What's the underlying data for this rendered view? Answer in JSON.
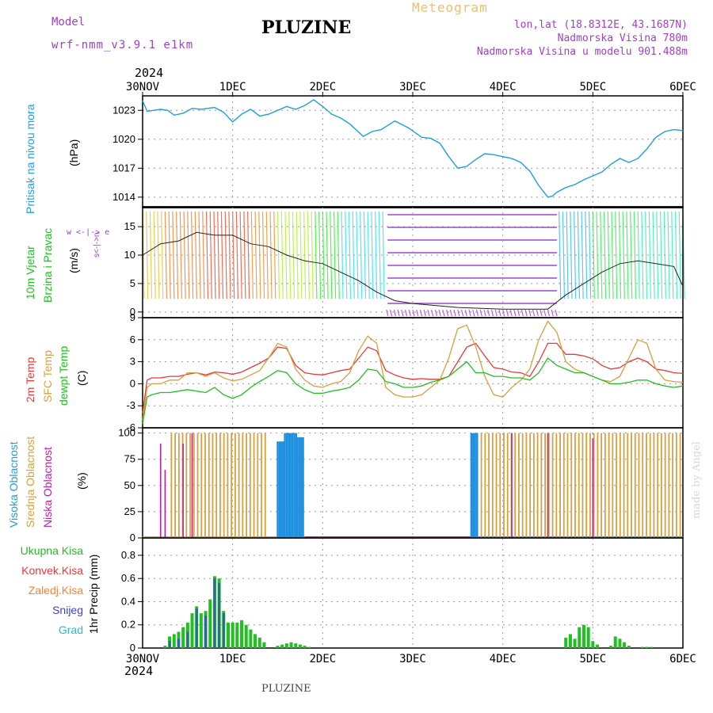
{
  "header": {
    "model_label": "Model",
    "model_name": "wrf-nmm_v3.9.1 e1km",
    "title": "PLUZINE",
    "subtitle": "Meteogram",
    "coords": "lon,lat (18.8312E, 43.1687N)",
    "elevation": "Nadmorska Visina 780m",
    "model_elevation": "Nadmorska Visina u modelu 901.488m",
    "year": "2024",
    "footer_title": "PLUZINE",
    "credit": "made by Angel"
  },
  "colors": {
    "pressure": "#1ea0e0",
    "temp2m": "#e83a3a",
    "sfctemp": "#d8a040",
    "dewpt": "#20c020",
    "cloud_high": "#1e90e0",
    "cloud_mid": "#d8a040",
    "cloud_low": "#c020a0",
    "precip_total": "#20c020",
    "precip_conv": "#e83a3a",
    "precip_freezing": "#ff8030",
    "precip_snow": "#4040d0",
    "precip_hail": "#20c0c0",
    "meta": "#a040c8"
  },
  "x_axis": {
    "dates": [
      "30NOV",
      "1DEC",
      "2DEC",
      "3DEC",
      "4DEC",
      "5DEC",
      "6DEC"
    ]
  },
  "panels": {
    "pressure": {
      "label": "Pritisak na nivou mora",
      "unit": "(hPa)"
    },
    "wind": {
      "label1": "10m Vjetar",
      "label2": "Brzina i Pravac",
      "unit": "(m/s)",
      "compass": "w <-|-> e",
      "compass2": "s<-|->n"
    },
    "temp": {
      "label1": "2m Temp",
      "label2": "SFC Temp",
      "label3": "dewpt Temp",
      "unit": "(C)"
    },
    "cloud": {
      "label1": "Visoka Oblacnost",
      "label2": "Srednja Oblacnost",
      "label3": "Niska Oblacnost",
      "unit": "(%)"
    },
    "precip": {
      "label1": "Ukupna Kisa",
      "label2": "Konvek.Kisa",
      "label3": "Zaledj.Kisa",
      "label4": "Snijeg",
      "label5": "Grad",
      "ylabel": "1hr Precip (mm)"
    }
  },
  "chart_data": [
    {
      "type": "line",
      "name": "pressure",
      "ylabel": "(hPa)",
      "ylim": [
        1013,
        1024.5
      ],
      "yticks": [
        1014,
        1017,
        1020,
        1023
      ],
      "x": [
        0,
        0.05,
        0.12,
        0.2,
        0.28,
        0.35,
        0.45,
        0.55,
        0.65,
        0.8,
        0.9,
        1.0,
        1.1,
        1.2,
        1.3,
        1.4,
        1.5,
        1.6,
        1.7,
        1.8,
        1.9,
        2.0,
        2.1,
        2.2,
        2.3,
        2.45,
        2.55,
        2.65,
        2.8,
        2.95,
        3.1,
        3.2,
        3.3,
        3.4,
        3.5,
        3.6,
        3.7,
        3.8,
        3.9,
        4.0,
        4.1,
        4.2,
        4.3,
        4.4,
        4.5,
        4.55,
        4.6,
        4.7,
        4.8,
        4.9,
        5.0,
        5.1,
        5.2,
        5.3,
        5.4,
        5.5,
        5.6,
        5.7,
        5.8,
        5.9,
        6.0
      ],
      "values": [
        1024,
        1022.9,
        1023,
        1023.1,
        1023,
        1022.5,
        1022.7,
        1023.2,
        1023.1,
        1023.3,
        1022.8,
        1021.8,
        1022.6,
        1023.1,
        1022.4,
        1022.6,
        1023,
        1023.4,
        1023.1,
        1023.5,
        1024.1,
        1023.4,
        1022.6,
        1022.2,
        1021.6,
        1020.3,
        1020.8,
        1021,
        1021.9,
        1021.2,
        1020.2,
        1020.1,
        1019.6,
        1018.2,
        1017,
        1017.2,
        1017.9,
        1018.5,
        1018.4,
        1018.2,
        1018.0,
        1017.6,
        1016.7,
        1015.2,
        1014,
        1014.1,
        1014.5,
        1015,
        1015.3,
        1015.8,
        1016.2,
        1016.6,
        1017.4,
        1018,
        1017.6,
        1018,
        1019,
        1020.2,
        1020.8,
        1021,
        1020.9
      ]
    },
    {
      "type": "line",
      "name": "wind",
      "ylabel": "(m/s)",
      "ylim": [
        -1,
        18.5
      ],
      "yticks": [
        0,
        5,
        10,
        15
      ],
      "x": [
        0,
        0.2,
        0.4,
        0.6,
        0.8,
        1.0,
        1.2,
        1.4,
        1.6,
        1.8,
        2.0,
        2.2,
        2.4,
        2.6,
        2.8,
        3.0,
        3.5,
        4.0,
        4.5,
        4.7,
        4.9,
        5.1,
        5.3,
        5.5,
        5.7,
        5.9,
        6.0
      ],
      "values": [
        10,
        12,
        12.5,
        14,
        13.5,
        13.5,
        12,
        11.5,
        10,
        9,
        8.5,
        7,
        5.5,
        3.5,
        2,
        1.5,
        0.8,
        0.5,
        0.5,
        3,
        5,
        7,
        8.5,
        9,
        8.5,
        8,
        4.5
      ]
    },
    {
      "type": "line",
      "ylabel": "(C)",
      "ylim": [
        -6,
        9
      ],
      "yticks": [
        -6,
        -3,
        0,
        3,
        6,
        9
      ],
      "x": [
        0,
        0.05,
        0.1,
        0.2,
        0.3,
        0.4,
        0.5,
        0.6,
        0.7,
        0.8,
        0.9,
        1.0,
        1.1,
        1.2,
        1.3,
        1.4,
        1.5,
        1.6,
        1.7,
        1.8,
        1.9,
        2.0,
        2.1,
        2.2,
        2.3,
        2.4,
        2.5,
        2.6,
        2.7,
        2.8,
        2.9,
        3.0,
        3.1,
        3.2,
        3.3,
        3.4,
        3.5,
        3.6,
        3.7,
        3.8,
        3.9,
        4.0,
        4.1,
        4.2,
        4.3,
        4.4,
        4.5,
        4.6,
        4.7,
        4.8,
        4.9,
        5.0,
        5.1,
        5.2,
        5.3,
        5.4,
        5.5,
        5.6,
        5.7,
        5.8,
        5.9,
        6.0
      ],
      "series": [
        {
          "name": "2m Temp",
          "values": [
            -4,
            0.5,
            0.8,
            0.8,
            1.0,
            1.0,
            1.3,
            1.5,
            1.2,
            1.6,
            1.5,
            1.3,
            1.6,
            2.2,
            2.8,
            3.5,
            5.0,
            4.8,
            2.5,
            1.5,
            1.3,
            1.2,
            1.5,
            1.8,
            2.0,
            3.5,
            5.0,
            4.5,
            1.8,
            1.2,
            0.8,
            0.6,
            0.7,
            0.6,
            0.6,
            1.0,
            3.0,
            5.0,
            5.5,
            3.8,
            2.2,
            2.0,
            1.6,
            1.5,
            1.0,
            3.0,
            5.5,
            5.5,
            4.0,
            4.0,
            3.8,
            3.4,
            2.5,
            2.0,
            2.2,
            3.0,
            3.5,
            3.0,
            2.0,
            1.8,
            1.5,
            1.4
          ]
        },
        {
          "name": "SFC Temp",
          "values": [
            -5,
            -0.5,
            0,
            0,
            0.5,
            0.5,
            1.5,
            1.5,
            1.0,
            1.5,
            0.8,
            0.4,
            0.6,
            1.2,
            1.8,
            3.5,
            5.5,
            5.0,
            2.0,
            0.5,
            -0.3,
            -0.5,
            0,
            0.3,
            1.5,
            4.5,
            6.5,
            5.5,
            -0.5,
            -1.5,
            -1.8,
            -1.8,
            -1.5,
            -0.5,
            0.5,
            3.5,
            7.5,
            8.0,
            5.0,
            1.0,
            -1.5,
            -1.8,
            -0.5,
            0.5,
            2.0,
            6.0,
            8.5,
            7.0,
            3.0,
            2.0,
            1.5,
            1.0,
            0.5,
            0.3,
            1.0,
            3.5,
            6.0,
            5.5,
            2.0,
            0.5,
            0.3,
            0.2
          ]
        },
        {
          "name": "dewpt Temp",
          "values": [
            -5.5,
            -1.8,
            -1.5,
            -1.2,
            -1.2,
            -1.0,
            -0.8,
            -1.0,
            -1.2,
            -0.5,
            -1.5,
            -2.0,
            -1.5,
            -0.5,
            0.3,
            1.0,
            1.8,
            1.5,
            0,
            -0.8,
            -1.3,
            -1.3,
            -1.0,
            -0.8,
            -0.5,
            0.5,
            2.0,
            1.8,
            0.3,
            0,
            -0.5,
            -0.5,
            -0.3,
            0.2,
            0.5,
            1.0,
            2.0,
            3.0,
            1.5,
            1.5,
            1.0,
            1.0,
            0.8,
            0.8,
            0.5,
            1.5,
            3.5,
            2.5,
            2.0,
            1.5,
            1.5,
            1.0,
            0.5,
            0,
            0,
            0.2,
            0.5,
            0.5,
            0,
            -0.3,
            -0.5,
            -0.3
          ]
        }
      ]
    },
    {
      "type": "bar",
      "name": "cloud",
      "ylabel": "(%)",
      "ylim": [
        0,
        105
      ],
      "yticks": [
        0,
        25,
        50,
        75,
        100
      ],
      "series": [
        {
          "name": "Visoka Oblacnost",
          "blocks": [
            [
              1.5,
              1.58,
              92
            ],
            [
              1.58,
              1.72,
              100
            ],
            [
              1.72,
              1.8,
              96
            ],
            [
              3.65,
              3.72,
              100
            ]
          ]
        },
        {
          "name": "Srednja Oblacnost",
          "blocks": [
            [
              0.32,
              1.4,
              100
            ],
            [
              3.72,
              6.0,
              100
            ]
          ]
        },
        {
          "name": "Niska Oblacnost",
          "spikes": [
            [
              0.2,
              90
            ],
            [
              0.25,
              65
            ],
            [
              0.45,
              90
            ],
            [
              0.55,
              100
            ],
            [
              4.1,
              100
            ],
            [
              4.5,
              100
            ],
            [
              5.0,
              95
            ]
          ]
        }
      ]
    },
    {
      "type": "bar",
      "name": "precip",
      "ylabel": "1hr Precip (mm)",
      "ylim": [
        0,
        0.95
      ],
      "yticks": [
        0,
        0.2,
        0.4,
        0.6,
        0.8
      ],
      "series": [
        {
          "name": "Ukupna Kisa",
          "x": [
            0.25,
            0.3,
            0.35,
            0.4,
            0.45,
            0.5,
            0.55,
            0.6,
            0.65,
            0.7,
            0.75,
            0.8,
            0.85,
            0.9,
            0.95,
            1.0,
            1.05,
            1.1,
            1.15,
            1.2,
            1.25,
            1.3,
            1.35,
            1.5,
            1.55,
            1.6,
            1.65,
            1.7,
            1.75,
            1.8,
            1.85,
            4.7,
            4.75,
            4.8,
            4.85,
            4.9,
            4.95,
            5.0,
            5.05,
            5.2,
            5.25,
            5.3,
            5.35,
            5.4,
            5.55,
            5.6,
            5.65
          ],
          "values": [
            0.02,
            0.1,
            0.12,
            0.14,
            0.18,
            0.22,
            0.3,
            0.36,
            0.3,
            0.32,
            0.42,
            0.62,
            0.6,
            0.32,
            0.22,
            0.22,
            0.22,
            0.24,
            0.2,
            0.16,
            0.12,
            0.09,
            0.05,
            0.02,
            0.03,
            0.04,
            0.05,
            0.04,
            0.03,
            0.02,
            0.01,
            0.09,
            0.12,
            0.08,
            0.18,
            0.2,
            0.18,
            0.06,
            0.03,
            0.02,
            0.1,
            0.08,
            0.05,
            0.02,
            0.01,
            0.01,
            0.01
          ]
        },
        {
          "name": "Snijeg",
          "x": [
            0.3,
            0.4,
            0.5,
            0.6,
            0.7,
            0.8,
            0.85,
            0.9
          ],
          "values": [
            0.06,
            0.08,
            0.14,
            0.34,
            0.28,
            0.6,
            0.56,
            0.3
          ]
        }
      ]
    }
  ]
}
